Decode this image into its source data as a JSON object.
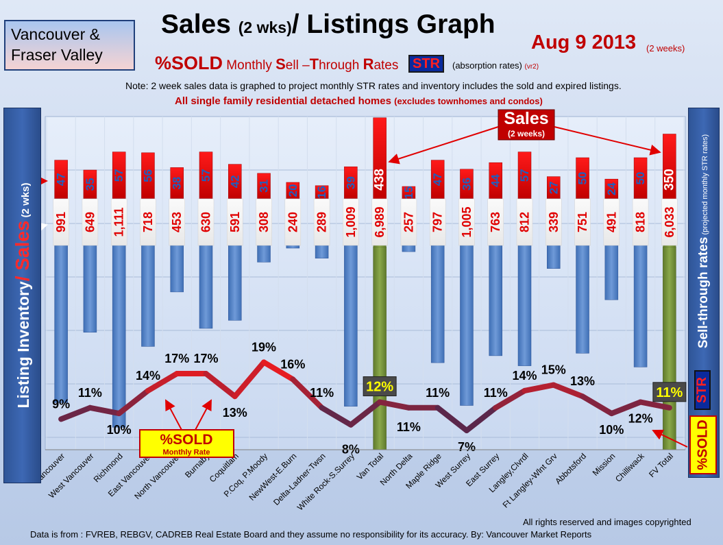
{
  "header": {
    "region_line1": "Vancouver &",
    "region_line2": "Fraser Valley",
    "title_a": "Sales ",
    "title_b": "(2 wks)",
    "title_c": "/ Listings Graph",
    "date": "Aug 9 2013",
    "date_note": "(2 weeks)",
    "subtitle_sold": "%SOLD",
    "subtitle_monthly": " Monthly ",
    "subtitle_s": "S",
    "subtitle_ell": "ell –",
    "subtitle_t": "T",
    "subtitle_hrough": "hrough ",
    "subtitle_r": "R",
    "subtitle_ates": "ates",
    "str_badge": "STR",
    "absorption": "(absorption rates)",
    "version": "(vr2)",
    "note": "Note: 2 week sales data is graphed to project monthly STR rates and inventory includes the sold and expired listings.",
    "scope_main": "All single family residential detached homes ",
    "scope_small": "(excludes townhomes and condos)"
  },
  "left_axis": {
    "part1": "Listing Inventory",
    "slash": "/ ",
    "part2": "Sales",
    "part3": " (2 wks)"
  },
  "right_axis": {
    "main": "Sell-through rates",
    "small": " (projected monthly STR rates)",
    "str": "STR",
    "sold": "%SOLD"
  },
  "callouts": {
    "sales_title": "Sales",
    "sales_sub": "(2 weeks)",
    "sold_title": "%SOLD",
    "sold_sub": "Monthly Rate"
  },
  "footer": {
    "rights": "All rights reserved and  images copyrighted",
    "source": "Data is  from : FVREB, REBGV, CADREB Real Estate Board and they assume no responsibility  for its accuracy. By: Vancouver Market Reports"
  },
  "colors": {
    "sales_bar": "#e00000",
    "inventory_bar": "#4f81bd",
    "total_bar": "#77933c",
    "sold_line_high": "#ff1a1a",
    "sold_line_low": "#3a2a55"
  },
  "chart_data": {
    "type": "bar",
    "categories": [
      "Vancouver",
      "West Vancouver",
      "Richmond",
      "East Vancouver",
      "North Vancouver",
      "Burnaby",
      "Coquitlam",
      "P.Coq, P.Moody",
      "NewWest-E.Burn",
      "Delta-Ladner-Twsn",
      "White Rock-S.Surrey",
      "Van Total",
      "North Delta",
      "Maple Ridge",
      "West Surrey",
      "East Surrey",
      "Langley,Clvrdl",
      "Ft Langley-Wlnt Grv",
      "Abbotsford",
      "Mission",
      "Chilliwack",
      "FV Total"
    ],
    "series": [
      {
        "name": "Sales",
        "values": [
          47,
          35,
          57,
          56,
          38,
          57,
          42,
          31,
          20,
          16,
          39,
          438,
          15,
          47,
          36,
          44,
          57,
          27,
          50,
          24,
          50,
          350
        ],
        "labels": [
          "47",
          "35",
          "57",
          "56",
          "38",
          "57",
          "42",
          "31",
          "20",
          "16",
          "39",
          "438",
          "15",
          "47",
          "36",
          "44",
          "57",
          "27",
          "50",
          "24",
          "50",
          "350"
        ]
      },
      {
        "name": "Listing Inventory",
        "values": [
          991,
          649,
          1111,
          718,
          453,
          630,
          591,
          308,
          240,
          289,
          1009,
          6989,
          257,
          797,
          1005,
          763,
          812,
          339,
          751,
          491,
          818,
          6033
        ],
        "labels": [
          "991",
          "649",
          "1,111",
          "718",
          "453",
          "630",
          "591",
          "308",
          "240",
          "289",
          "1,009",
          "6,989",
          "257",
          "797",
          "1,005",
          "763",
          "812",
          "339",
          "751",
          "491",
          "818",
          "6,033"
        ]
      },
      {
        "name": "%SOLD",
        "values": [
          9,
          11,
          10,
          14,
          17,
          17,
          13,
          19,
          16,
          11,
          8,
          12,
          11,
          11,
          7,
          11,
          14,
          15,
          13,
          10,
          12,
          11
        ],
        "labels": [
          "9%",
          "11%",
          "10%",
          "14%",
          "17%",
          "17%",
          "13%",
          "19%",
          "16%",
          "11%",
          "8%",
          "12%",
          "11%",
          "11%",
          "7%",
          "11%",
          "14%",
          "15%",
          "13%",
          "10%",
          "12%",
          "11%"
        ]
      }
    ],
    "totals": [
      "Van Total",
      "FV Total"
    ],
    "grid": true
  }
}
